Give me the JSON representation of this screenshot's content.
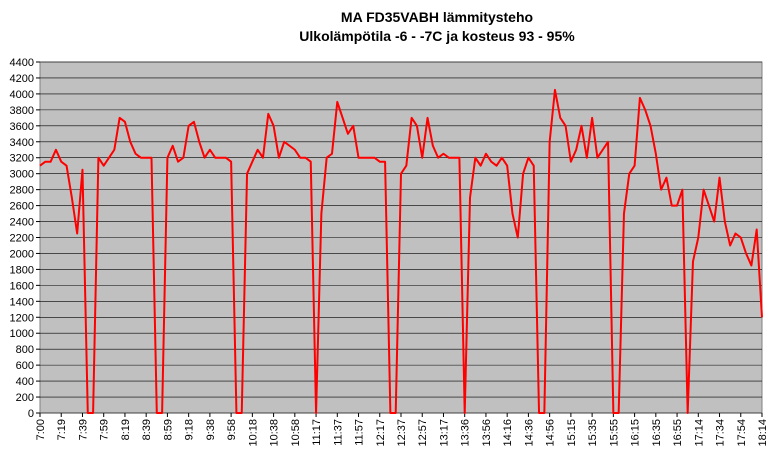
{
  "chart_data": {
    "type": "line",
    "title": "MA FD35VABH lämmitysteho",
    "subtitle": "Ulkolämpötila  -6 - -7C ja kosteus 93 - 95%",
    "categories": [
      "7:00",
      null,
      null,
      null,
      "7:19",
      null,
      null,
      null,
      "7:39",
      null,
      null,
      null,
      "7:59",
      null,
      null,
      null,
      "8:19",
      null,
      null,
      null,
      "8:39",
      null,
      null,
      null,
      "8:59",
      null,
      null,
      null,
      "9:18",
      null,
      null,
      null,
      "9:38",
      null,
      null,
      null,
      "9:58",
      null,
      null,
      null,
      "10:18",
      null,
      null,
      null,
      "10:38",
      null,
      null,
      null,
      "10:58",
      null,
      null,
      null,
      "11:17",
      null,
      null,
      null,
      "11:37",
      null,
      null,
      null,
      "11:57",
      null,
      null,
      null,
      "12:17",
      null,
      null,
      null,
      "12:37",
      null,
      null,
      null,
      "12:57",
      null,
      null,
      null,
      "13:17",
      null,
      null,
      null,
      "13:36",
      null,
      null,
      null,
      "13:56",
      null,
      null,
      null,
      "14:16",
      null,
      null,
      null,
      "14:36",
      null,
      null,
      null,
      "14:56",
      null,
      null,
      null,
      "15:15",
      null,
      null,
      null,
      "15:35",
      null,
      null,
      null,
      "15:55",
      null,
      null,
      null,
      "16:15",
      null,
      null,
      null,
      "16:35",
      null,
      null,
      null,
      "16:55",
      null,
      null,
      null,
      "17:14",
      null,
      null,
      null,
      "17:34",
      null,
      null,
      null,
      "17:54",
      null,
      null,
      null,
      "18:14"
    ],
    "values": [
      3100,
      3150,
      3150,
      3300,
      3150,
      3100,
      2700,
      2250,
      3050,
      0,
      0,
      3200,
      3100,
      3200,
      3300,
      3700,
      3650,
      3400,
      3250,
      3200,
      3200,
      3200,
      0,
      0,
      3200,
      3350,
      3150,
      3200,
      3600,
      3650,
      3400,
      3200,
      3300,
      3200,
      3200,
      3200,
      3150,
      0,
      0,
      3000,
      3150,
      3300,
      3200,
      3750,
      3600,
      3200,
      3400,
      3350,
      3300,
      3200,
      3200,
      3150,
      0,
      2500,
      3200,
      3250,
      3900,
      3700,
      3500,
      3600,
      3200,
      3200,
      3200,
      3200,
      3150,
      3150,
      0,
      0,
      3000,
      3100,
      3700,
      3600,
      3200,
      3700,
      3350,
      3200,
      3250,
      3200,
      3200,
      3200,
      0,
      2700,
      3200,
      3100,
      3250,
      3150,
      3100,
      3200,
      3100,
      2500,
      2200,
      3000,
      3200,
      3100,
      0,
      0,
      3400,
      4050,
      3700,
      3600,
      3150,
      3300,
      3600,
      3200,
      3700,
      3200,
      3300,
      3400,
      0,
      0,
      2500,
      3000,
      3100,
      3950,
      3800,
      3600,
      3250,
      2800,
      2950,
      2600,
      2600,
      2800,
      0,
      1900,
      2200,
      2800,
      2600,
      2400,
      2950,
      2400,
      2100,
      2250,
      2200,
      2000,
      1850,
      2300,
      1200
    ],
    "color": "#ff0000",
    "ylim": [
      0,
      4400
    ],
    "yticks": [
      0,
      200,
      400,
      600,
      800,
      1000,
      1200,
      1400,
      1600,
      1800,
      2000,
      2200,
      2400,
      2600,
      2800,
      3000,
      3200,
      3400,
      3600,
      3800,
      4000,
      4200,
      4400
    ],
    "grid": true
  }
}
